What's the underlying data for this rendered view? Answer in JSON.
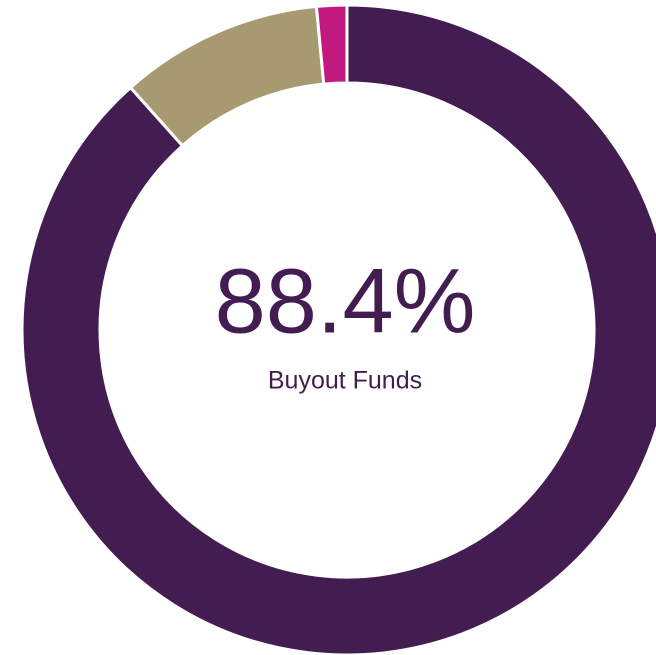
{
  "chart_data": {
    "type": "donut",
    "categories": [
      "Buyout Funds",
      null,
      null
    ],
    "values": [
      88.4,
      10.1,
      1.5
    ],
    "value_labels": [
      "88.4%",
      null,
      null
    ],
    "colors": [
      "#431c51",
      "#a89a70",
      "#c2197f"
    ]
  }
}
